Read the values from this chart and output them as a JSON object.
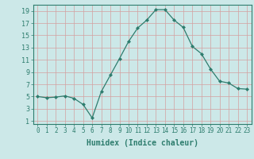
{
  "x": [
    0,
    1,
    2,
    3,
    4,
    5,
    6,
    7,
    8,
    9,
    10,
    11,
    12,
    13,
    14,
    15,
    16,
    17,
    18,
    19,
    20,
    21,
    22,
    23
  ],
  "y": [
    5,
    4.8,
    4.9,
    5.1,
    4.7,
    3.7,
    1.5,
    5.8,
    8.5,
    11.2,
    14.0,
    16.2,
    17.5,
    19.2,
    19.2,
    17.5,
    16.3,
    13.2,
    12.0,
    9.5,
    7.5,
    7.2,
    6.3,
    6.2
  ],
  "line_color": "#2e7d6e",
  "marker": "D",
  "marker_size": 2,
  "bg_color": "#cce8e8",
  "grid_color": "#c0d8d8",
  "xlabel": "Humidex (Indice chaleur)",
  "xlabel_fontsize": 7,
  "ylabel_ticks": [
    1,
    3,
    5,
    7,
    9,
    11,
    13,
    15,
    17,
    19
  ],
  "xticks": [
    0,
    1,
    2,
    3,
    4,
    5,
    6,
    7,
    8,
    9,
    10,
    11,
    12,
    13,
    14,
    15,
    16,
    17,
    18,
    19,
    20,
    21,
    22,
    23
  ],
  "xlim": [
    -0.5,
    23.5
  ],
  "ylim": [
    0.5,
    20.0
  ],
  "tick_fontsize": 5.5,
  "ytick_fontsize": 6
}
